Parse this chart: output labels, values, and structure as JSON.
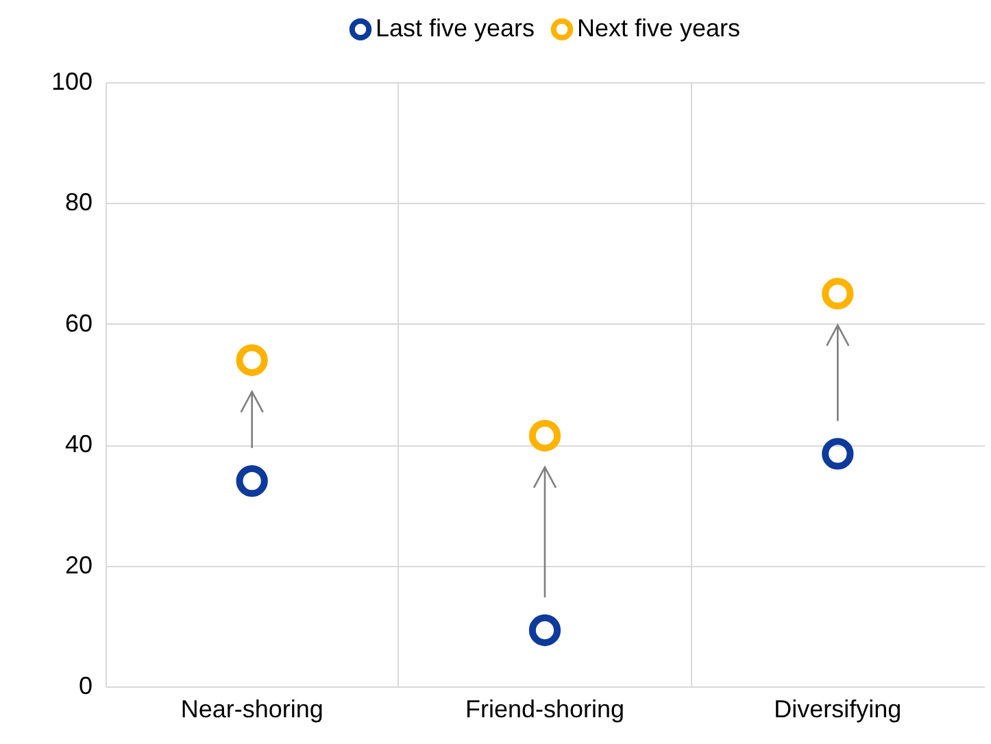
{
  "chart_data": {
    "type": "scatter",
    "categories": [
      "Near-shoring",
      "Friend-shoring",
      "Diversifying"
    ],
    "series": [
      {
        "name": "Last five years",
        "color": "#0d3a9b",
        "values": [
          34,
          9.3,
          38.5
        ]
      },
      {
        "name": "Next five years",
        "color": "#ffb300",
        "values": [
          54,
          41.5,
          65
        ]
      }
    ],
    "ylim": [
      0,
      100
    ],
    "yticks": [
      0,
      20,
      40,
      60,
      80,
      100
    ],
    "grid": true,
    "legend": "top",
    "marker": "circle"
  }
}
